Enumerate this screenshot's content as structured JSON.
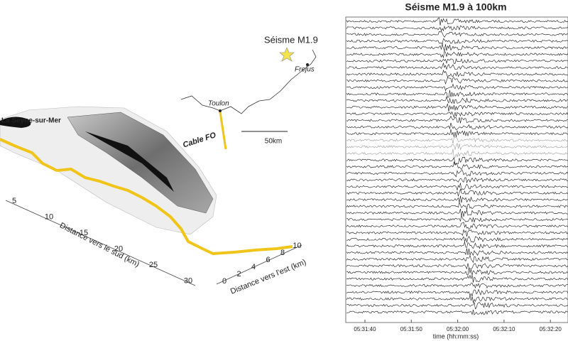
{
  "map": {
    "place_start": "La Seyne-sur-Mer",
    "event": "Séisme M1.9",
    "city_east": "Frejus",
    "city_west": "Toulon",
    "cable": "Cable FO",
    "scale": "50km",
    "south_axis": {
      "label": "Distance vers le sud (km)",
      "ticks": [
        5,
        10,
        15,
        20,
        25,
        30
      ]
    },
    "east_axis": {
      "label": "Distance vers l'est (km)",
      "ticks": [
        0,
        2,
        4,
        6,
        8,
        10
      ]
    }
  },
  "record": {
    "title": "Séisme M1.9 à 100km",
    "xticks": [
      "05:31:40",
      "05:31:50",
      "05:32:00",
      "05:32:10",
      "05:32:20"
    ],
    "xlabel": "time (hh:mm:ss)"
  }
}
